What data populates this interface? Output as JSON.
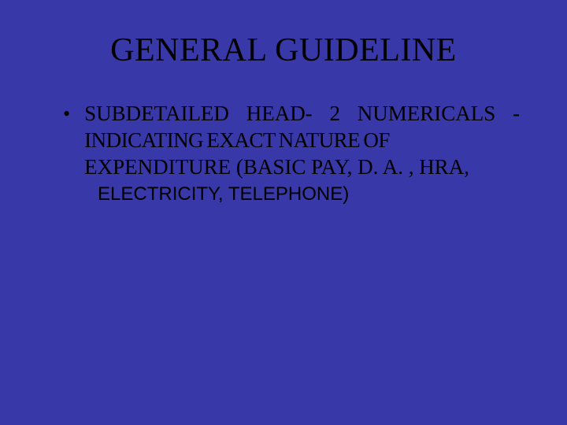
{
  "background_color": "#3838a8",
  "text_color": "#000000",
  "title": "GENERAL GUIDELINE",
  "title_fontsize": 42,
  "body_fontsize": 27,
  "bullet": {
    "marker": "•",
    "line1": "SUBDETAILED  HEAD-  2  NUMERICALS  -",
    "line2": "INDICATING EXACT NATURE OF",
    "line3_serif": "EXPENDITURE (BASIC PAY, D. A. , HRA",
    "comma": ",",
    "line4_sans": "ELECTRICITY, TELEPHONE)"
  }
}
